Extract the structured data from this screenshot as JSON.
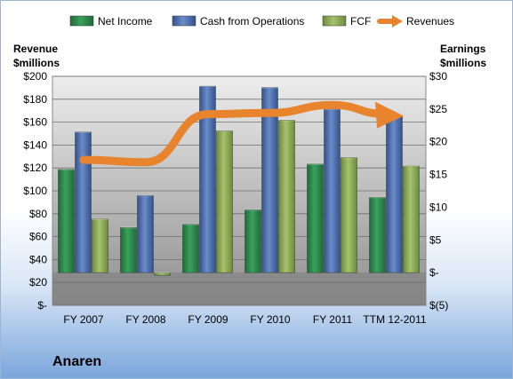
{
  "company": "Anaren",
  "chart_data": {
    "type": "bar",
    "categories": [
      "FY 2007",
      "FY 2008",
      "FY 2009",
      "FY 2010",
      "FY 2011",
      "TTM 12-2011"
    ],
    "left_axis": {
      "title_line1": "Revenue",
      "title_line2": "$millions",
      "ylim": [
        0,
        200
      ],
      "ticks": [
        0,
        20,
        40,
        60,
        80,
        100,
        120,
        140,
        160,
        180,
        200
      ],
      "tick_labels": [
        "$-",
        "$20",
        "$40",
        "$60",
        "$80",
        "$100",
        "$120",
        "$140",
        "$160",
        "$180",
        "$200"
      ]
    },
    "right_axis": {
      "title_line1": "Earnings",
      "title_line2": "$millions",
      "ylim": [
        -5,
        30
      ],
      "ticks": [
        -5,
        0,
        5,
        10,
        15,
        20,
        25,
        30
      ],
      "tick_labels": [
        "$(5)",
        "$-",
        "$5",
        "$10",
        "$15",
        "$20",
        "$25",
        "$30"
      ]
    },
    "series": [
      {
        "name": "Net Income",
        "axis": "right",
        "color": "#2e8b4e",
        "values": [
          15.8,
          6.9,
          7.4,
          9.6,
          16.6,
          11.5
        ]
      },
      {
        "name": "Cash from Operations",
        "axis": "right",
        "color": "#4f6fae",
        "values": [
          21.5,
          11.8,
          28.5,
          28.3,
          25.0,
          24.0
        ]
      },
      {
        "name": "FCF",
        "axis": "right",
        "color": "#8fac5a",
        "values": [
          8.2,
          -0.4,
          21.7,
          23.3,
          17.6,
          16.3
        ]
      },
      {
        "name": "Revenues",
        "axis": "left",
        "type": "line",
        "color": "#e8842e",
        "values": [
          127,
          125,
          167,
          168,
          175,
          167
        ]
      }
    ],
    "legend_position": "top"
  }
}
